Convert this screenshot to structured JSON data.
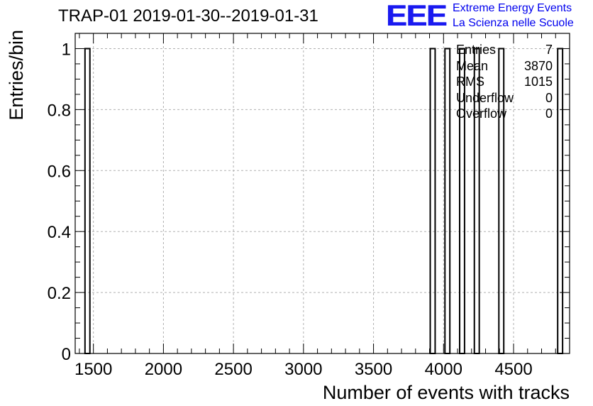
{
  "header": {
    "title": "TRAP-01 2019-01-30--2019-01-31",
    "logo_text": "EEE",
    "logo_line1": "Extreme Energy Events",
    "logo_line2": "La Scienza nelle Scuole"
  },
  "stats": [
    {
      "label": "Entries",
      "value": "7"
    },
    {
      "label": "Mean",
      "value": "3870"
    },
    {
      "label": "RMS",
      "value": "1015"
    },
    {
      "label": "Underflow",
      "value": "0"
    },
    {
      "label": "Overflow",
      "value": "0"
    }
  ],
  "colors": {
    "logo": "#1a1af0",
    "grid": "#b0b0b0",
    "bar": "#000000"
  },
  "chart_data": {
    "type": "bar",
    "title": "TRAP-01 2019-01-30--2019-01-31",
    "xlabel": "Number of events with tracks",
    "ylabel": "Entries/bin",
    "xlim": [
      1370,
      4900
    ],
    "ylim": [
      0,
      1.05
    ],
    "grid": true,
    "bin_width": 35,
    "bins": [
      {
        "x": 1440,
        "value": 1
      },
      {
        "x": 3905,
        "value": 1
      },
      {
        "x": 4010,
        "value": 1
      },
      {
        "x": 4115,
        "value": 1
      },
      {
        "x": 4220,
        "value": 1
      },
      {
        "x": 4395,
        "value": 1
      },
      {
        "x": 4815,
        "value": 1
      }
    ],
    "x_ticks": [
      "1500",
      "2000",
      "2500",
      "3000",
      "3500",
      "4000",
      "4500"
    ],
    "x_tick_values": [
      1500,
      2000,
      2500,
      3000,
      3500,
      4000,
      4500
    ],
    "y_ticks": [
      "0",
      "0.2",
      "0.4",
      "0.6",
      "0.8",
      "1"
    ],
    "y_tick_values": [
      0,
      0.2,
      0.4,
      0.6,
      0.8,
      1
    ]
  }
}
